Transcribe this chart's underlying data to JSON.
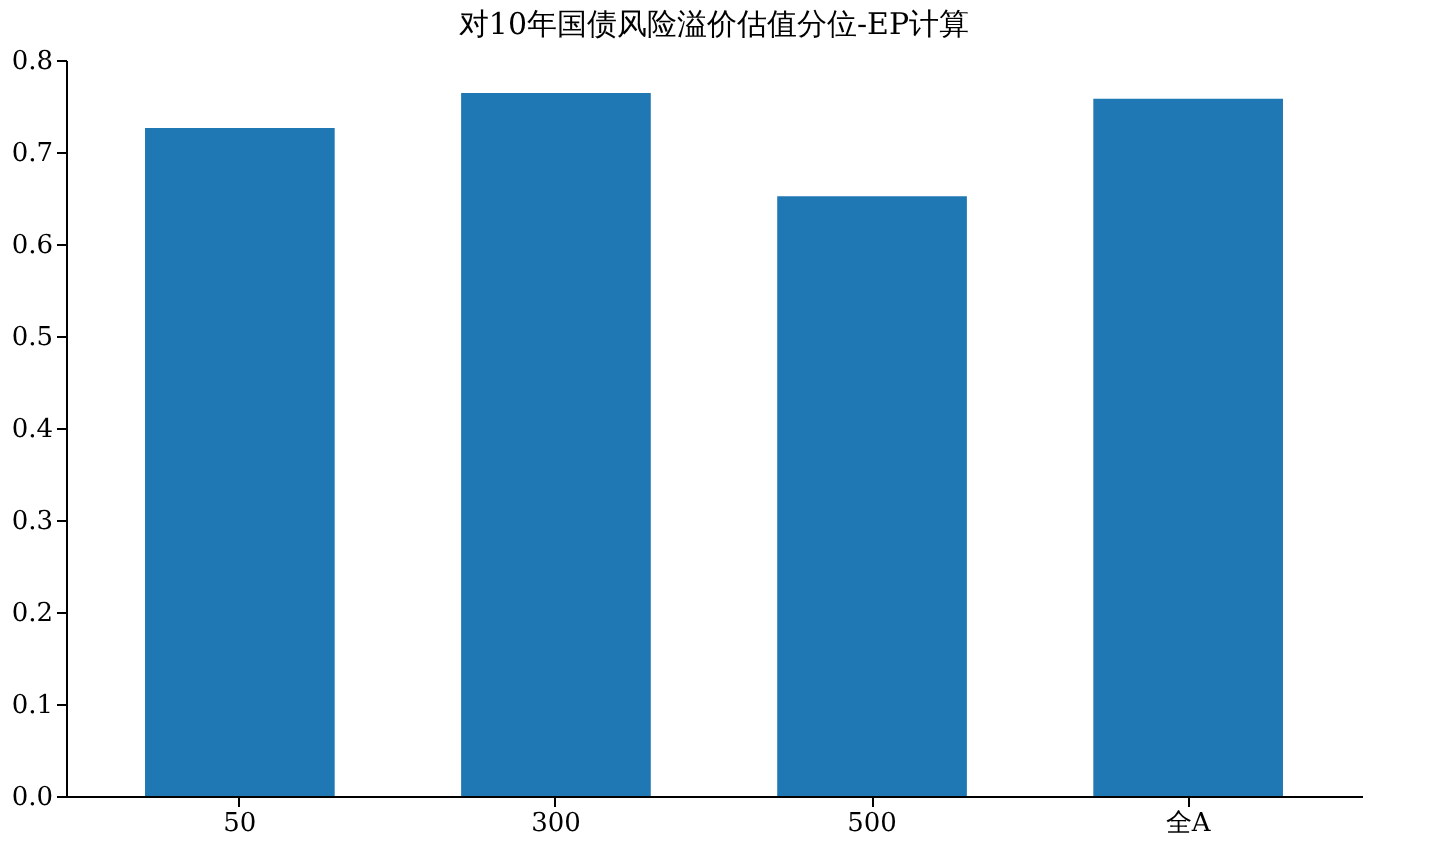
{
  "chart_data": {
    "type": "bar",
    "title": "对10年国债风险溢价估值分位-EP计算",
    "categories": [
      "50",
      "300",
      "500",
      "全A"
    ],
    "values": [
      0.726,
      0.764,
      0.652,
      0.758
    ],
    "color": "#1f77b4",
    "ylim": [
      0,
      0.8
    ],
    "yticks": [
      {
        "value": 0,
        "label": "0.0"
      },
      0.1,
      0.2,
      0.3,
      0.4,
      0.5,
      0.6,
      0.7,
      0.8
    ],
    "grid": false
  }
}
